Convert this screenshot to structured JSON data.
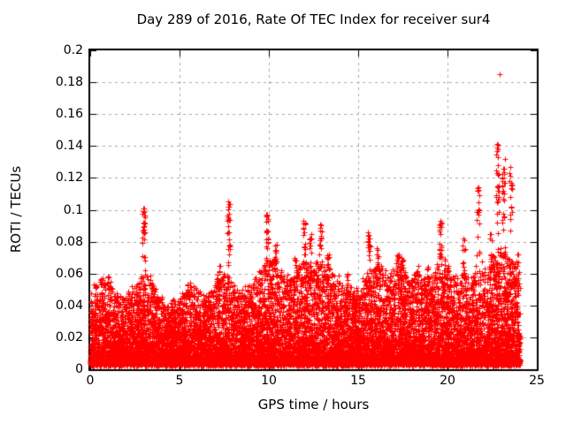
{
  "chart_data": {
    "type": "scatter",
    "title": "Day 289 of 2016, Rate Of TEC Index for receiver sur4",
    "xlabel": "GPS time / hours",
    "ylabel": "ROTI / TECUs",
    "xlim": [
      0,
      25
    ],
    "ylim": [
      0,
      0.2
    ],
    "xticks": [
      {
        "v": 0,
        "label": "0"
      },
      {
        "v": 5,
        "label": "5"
      },
      {
        "v": 10,
        "label": "10"
      },
      {
        "v": 15,
        "label": "15"
      },
      {
        "v": 20,
        "label": "20"
      },
      {
        "v": 25,
        "label": "25"
      }
    ],
    "yticks": [
      {
        "v": 0,
        "label": "0"
      },
      {
        "v": 0.02,
        "label": "0.02"
      },
      {
        "v": 0.04,
        "label": "0.04"
      },
      {
        "v": 0.06,
        "label": "0.06"
      },
      {
        "v": 0.08,
        "label": "0.08"
      },
      {
        "v": 0.1,
        "label": "0.1"
      },
      {
        "v": 0.12,
        "label": "0.12"
      },
      {
        "v": 0.14,
        "label": "0.14"
      },
      {
        "v": 0.16,
        "label": "0.16"
      },
      {
        "v": 0.18,
        "label": "0.18"
      },
      {
        "v": 0.2,
        "label": "0.2"
      }
    ],
    "grid": {
      "show": true,
      "dashed": true
    },
    "legend": {
      "show": false
    },
    "marker": {
      "shape": "plus",
      "size": 7
    },
    "colors": {
      "marker": "#ff0000",
      "grid": "#a8a8a8",
      "axis": "#000000",
      "text": "#000000",
      "background": "#ffffff"
    },
    "data_time_range": [
      0,
      24.05
    ],
    "baseline_min": 0.002,
    "n_background_points": 14000,
    "density_exponent": 2.5,
    "seed": 2016289,
    "envelope": {
      "t": [
        0,
        0.3,
        0.7,
        1.0,
        1.4,
        1.8,
        2.2,
        2.6,
        3.0,
        3.4,
        3.8,
        4.3,
        4.8,
        5.2,
        5.6,
        6.0,
        6.4,
        6.8,
        7.2,
        7.6,
        8.0,
        8.4,
        8.8,
        9.2,
        9.6,
        9.9,
        10.3,
        10.7,
        11.1,
        11.5,
        12.0,
        12.4,
        12.9,
        13.3,
        13.7,
        14.1,
        14.5,
        15.0,
        15.4,
        15.8,
        16.2,
        16.6,
        17.0,
        17.4,
        17.8,
        18.2,
        18.6,
        19.0,
        19.4,
        19.8,
        20.2,
        20.6,
        21.0,
        21.4,
        21.8,
        22.2,
        22.6,
        23.0,
        23.4,
        23.8,
        24.05
      ],
      "v": [
        0.048,
        0.052,
        0.055,
        0.057,
        0.048,
        0.043,
        0.047,
        0.052,
        0.06,
        0.055,
        0.045,
        0.038,
        0.042,
        0.046,
        0.051,
        0.048,
        0.042,
        0.048,
        0.057,
        0.063,
        0.052,
        0.046,
        0.052,
        0.057,
        0.062,
        0.068,
        0.07,
        0.06,
        0.055,
        0.06,
        0.068,
        0.063,
        0.068,
        0.063,
        0.058,
        0.053,
        0.049,
        0.051,
        0.057,
        0.062,
        0.065,
        0.058,
        0.062,
        0.066,
        0.055,
        0.06,
        0.055,
        0.058,
        0.063,
        0.068,
        0.06,
        0.055,
        0.062,
        0.058,
        0.066,
        0.06,
        0.07,
        0.075,
        0.07,
        0.064,
        0.058
      ]
    },
    "spikes": [
      [
        1.05,
        0.05,
        0.058,
        8
      ],
      [
        3.0,
        0.06,
        0.101,
        28
      ],
      [
        5.5,
        0.045,
        0.053,
        8
      ],
      [
        7.2,
        0.05,
        0.065,
        10
      ],
      [
        7.75,
        0.062,
        0.105,
        26
      ],
      [
        9.9,
        0.068,
        0.097,
        22
      ],
      [
        10.35,
        0.062,
        0.078,
        18
      ],
      [
        11.5,
        0.055,
        0.07,
        10
      ],
      [
        12.0,
        0.07,
        0.093,
        16
      ],
      [
        12.35,
        0.06,
        0.085,
        14
      ],
      [
        12.9,
        0.068,
        0.091,
        16
      ],
      [
        13.3,
        0.06,
        0.072,
        10
      ],
      [
        14.4,
        0.05,
        0.06,
        8
      ],
      [
        15.6,
        0.062,
        0.086,
        16
      ],
      [
        16.1,
        0.06,
        0.076,
        12
      ],
      [
        17.2,
        0.058,
        0.072,
        10
      ],
      [
        17.45,
        0.055,
        0.07,
        10
      ],
      [
        18.3,
        0.052,
        0.065,
        8
      ],
      [
        18.9,
        0.052,
        0.064,
        8
      ],
      [
        19.6,
        0.068,
        0.093,
        24
      ],
      [
        20.9,
        0.058,
        0.082,
        12
      ],
      [
        21.7,
        0.068,
        0.114,
        22
      ],
      [
        22.45,
        0.06,
        0.085,
        12
      ],
      [
        22.8,
        0.072,
        0.141,
        30
      ],
      [
        23.15,
        0.07,
        0.132,
        26
      ],
      [
        23.55,
        0.065,
        0.127,
        20
      ],
      [
        23.9,
        0.055,
        0.072,
        8
      ]
    ],
    "outliers": [
      [
        22.92,
        0.185
      ]
    ]
  }
}
